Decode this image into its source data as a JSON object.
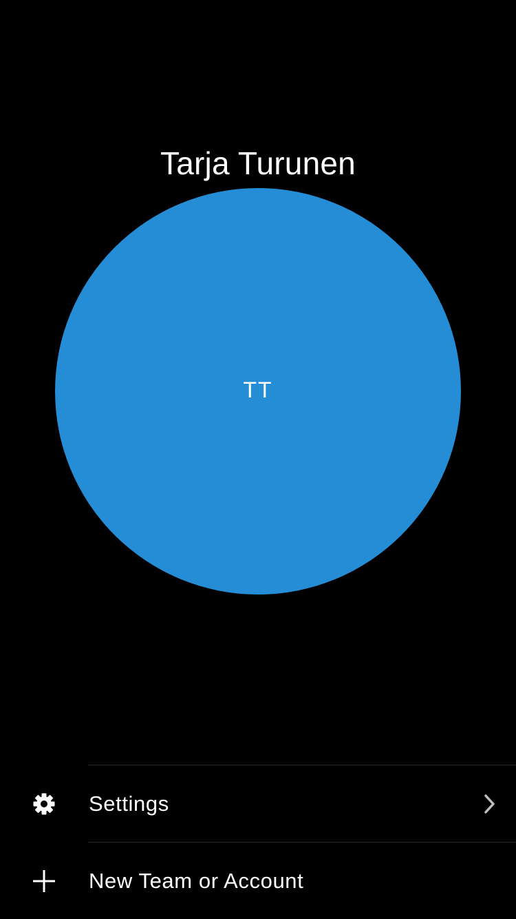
{
  "profile": {
    "name": "Tarja Turunen",
    "initials": "TT",
    "avatar_color": "#258dd6"
  },
  "menu": {
    "items": [
      {
        "label": "Settings",
        "icon": "gear-icon",
        "has_chevron": true
      },
      {
        "label": "New Team or Account",
        "icon": "plus-icon",
        "has_chevron": false
      }
    ]
  },
  "colors": {
    "background": "#000000",
    "text": "#ffffff",
    "divider": "#2a2a2a",
    "chevron": "#bfbfbf"
  }
}
